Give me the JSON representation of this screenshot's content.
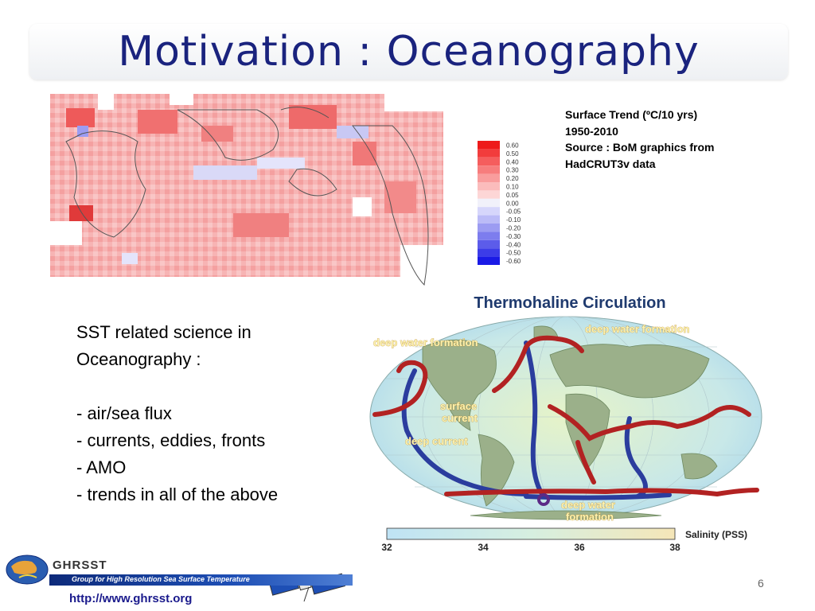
{
  "slide": {
    "title": "Motivation : Oceanography",
    "page_number": "6"
  },
  "trend_map": {
    "legend_values": [
      "0.60",
      "0.50",
      "0.40",
      "0.30",
      "0.20",
      "0.10",
      "0.05",
      "0.00",
      "-0.05",
      "-0.10",
      "-0.20",
      "-0.30",
      "-0.40",
      "-0.50",
      "-0.60"
    ],
    "legend_colors": [
      "#ee1a1a",
      "#f23c3c",
      "#f55d5d",
      "#f77d7d",
      "#f99d9d",
      "#fbbcbc",
      "#fdd6d6",
      "#f1f1fa",
      "#d6d6fb",
      "#bbbbf7",
      "#9c9cf2",
      "#7d7dee",
      "#5c5cea",
      "#3c3ce8",
      "#1a1ae6"
    ]
  },
  "caption": {
    "line1": "Surface Trend (ºC/10 yrs)",
    "line2": "1950-2010",
    "line3": "Source : BoM graphics from",
    "line4": "HadCRUT3v data"
  },
  "science": {
    "line1": "SST related science in",
    "line2": "Oceanography :",
    "items": [
      "- air/sea flux",
      "- currents, eddies, fronts",
      "- AMO",
      "- trends in all of the above"
    ]
  },
  "thermohaline": {
    "title": "Thermohaline Circulation",
    "label_dwf_right": "deep water formation",
    "label_dwf_left": "deep water formation",
    "label_surface_1": "surface",
    "label_surface_2": "current",
    "label_deep_current": "deep current",
    "label_dwf_bottom_1": "deep water",
    "label_dwf_bottom_2": "formation",
    "salinity_label": "Salinity (PSS)",
    "salinity_ticks": [
      "32",
      "34",
      "36",
      "38"
    ]
  },
  "footer": {
    "org_name": "GHRSST",
    "tagline": "Group for High Resolution Sea Surface Temperature",
    "url": "http://www.ghrsst.org"
  }
}
